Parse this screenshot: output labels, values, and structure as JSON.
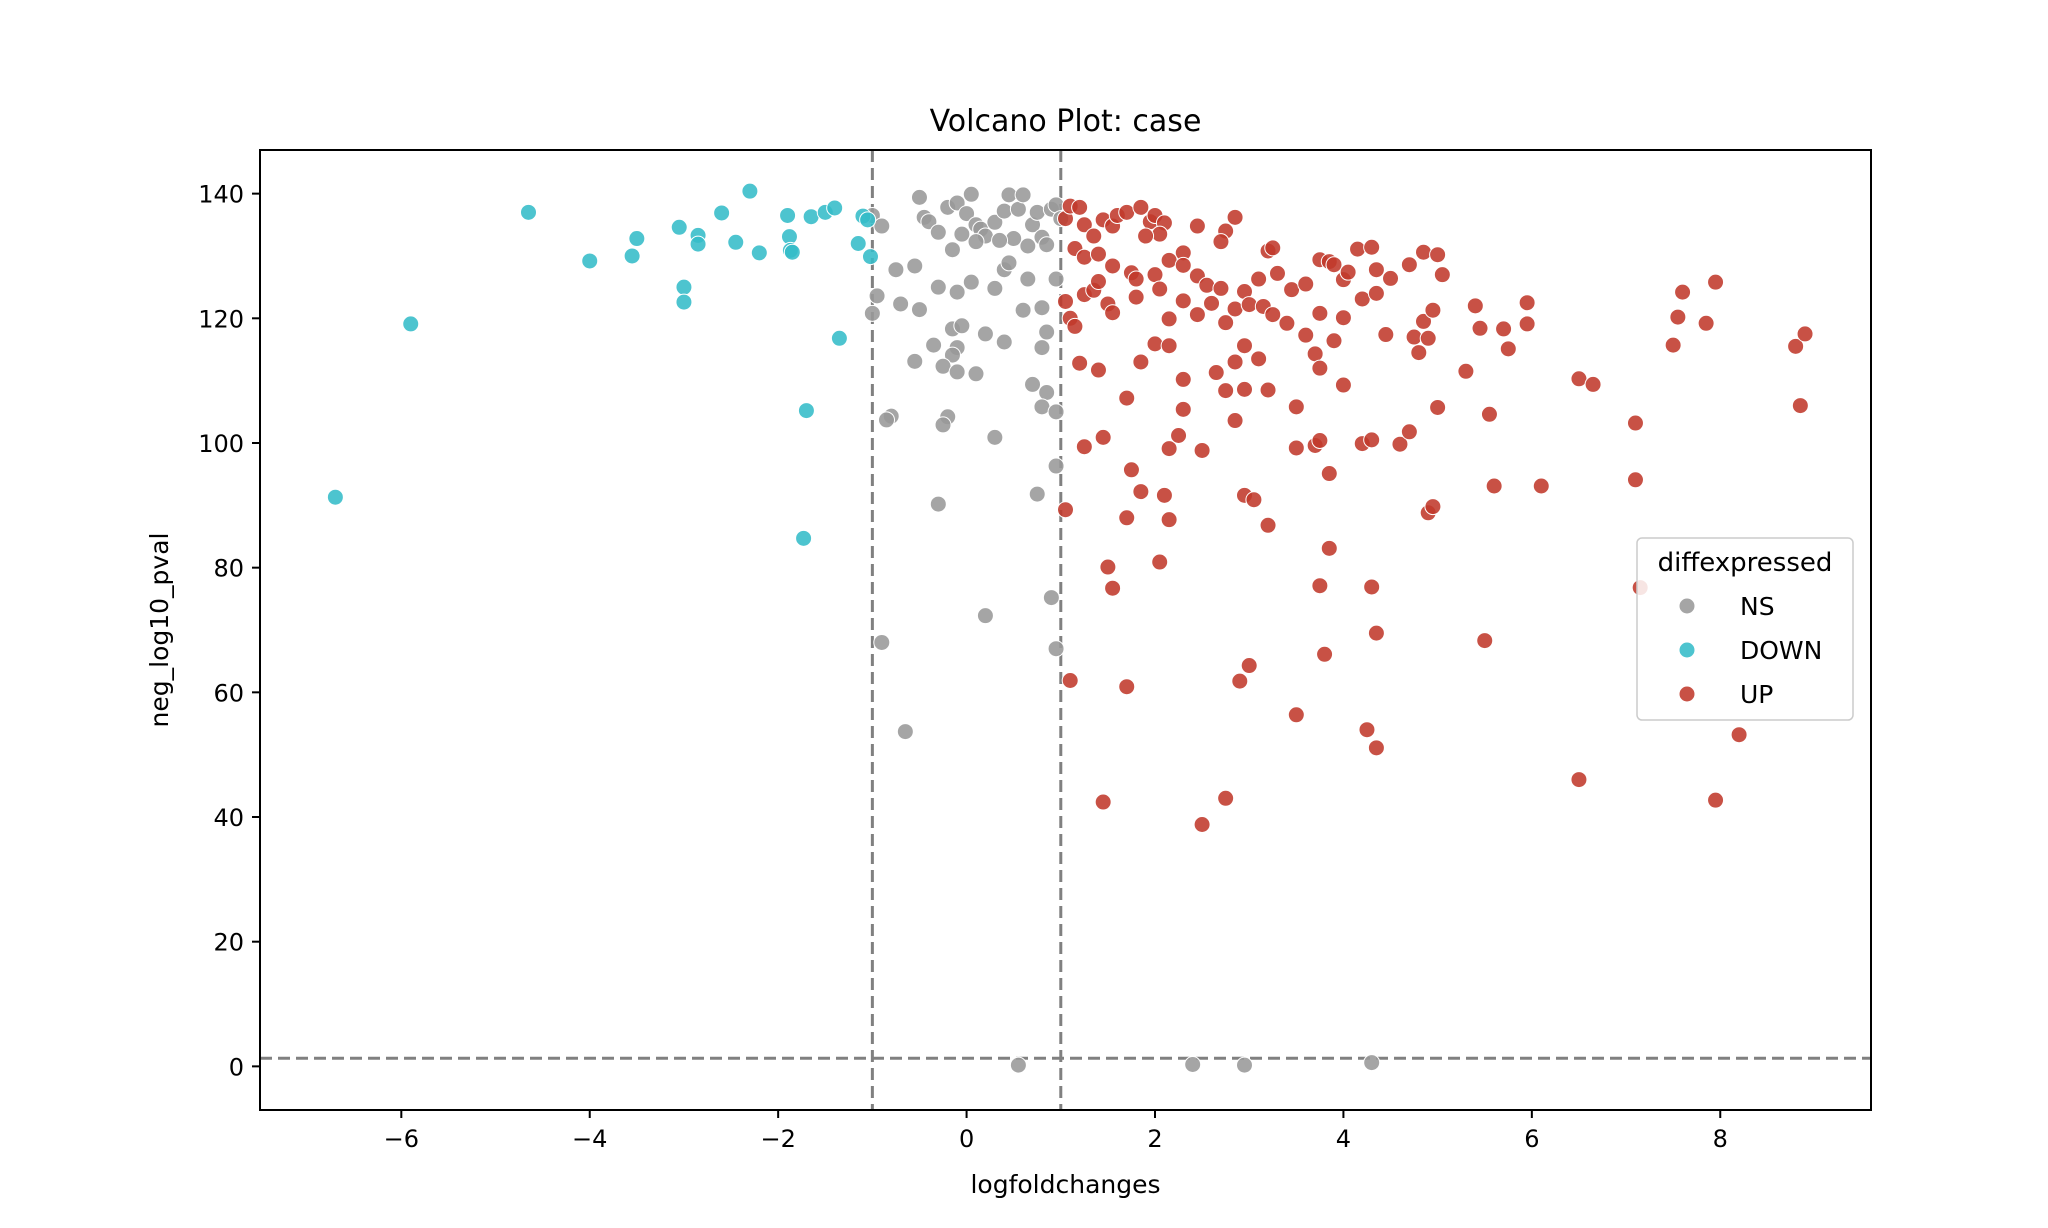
{
  "chart_data": {
    "type": "scatter",
    "title": "Volcano Plot: case",
    "xlabel": "logfoldchanges",
    "ylabel": "neg_log10_pval",
    "xlim": [
      -7.5,
      9.6
    ],
    "ylim": [
      -7,
      147
    ],
    "xticks": [
      -6,
      -4,
      -2,
      0,
      2,
      4,
      6,
      8
    ],
    "yticks": [
      0,
      20,
      40,
      60,
      80,
      100,
      120,
      140
    ],
    "thresholds": {
      "x": [
        -1,
        1
      ],
      "y": 1.3
    },
    "threshold_color": "#808080",
    "grid": false,
    "legend": {
      "title": "diffexpressed",
      "position": "center-right"
    },
    "series": [
      {
        "name": "NS",
        "color": "#999999",
        "points": [
          [
            -1.0,
            136.5
          ],
          [
            -0.9,
            134.8
          ],
          [
            -0.5,
            139.4
          ],
          [
            -0.45,
            136.2
          ],
          [
            -0.4,
            135.5
          ],
          [
            -0.3,
            133.8
          ],
          [
            -0.2,
            137.8
          ],
          [
            -0.1,
            138.5
          ],
          [
            0.05,
            139.9
          ],
          [
            0.0,
            136.8
          ],
          [
            0.1,
            135.0
          ],
          [
            0.15,
            134.3
          ],
          [
            0.2,
            133.2
          ],
          [
            0.3,
            135.4
          ],
          [
            0.4,
            137.2
          ],
          [
            0.45,
            139.8
          ],
          [
            0.55,
            137.5
          ],
          [
            0.6,
            139.8
          ],
          [
            0.7,
            135.0
          ],
          [
            0.75,
            137.0
          ],
          [
            0.8,
            133.0
          ],
          [
            0.9,
            137.5
          ],
          [
            0.95,
            138.2
          ],
          [
            1.0,
            136.0
          ],
          [
            0.85,
            131.8
          ],
          [
            0.65,
            131.6
          ],
          [
            0.5,
            132.8
          ],
          [
            0.35,
            132.5
          ],
          [
            0.1,
            132.3
          ],
          [
            -0.05,
            133.5
          ],
          [
            -0.15,
            131.0
          ],
          [
            0.4,
            127.8
          ],
          [
            0.45,
            128.9
          ],
          [
            0.3,
            124.8
          ],
          [
            0.05,
            125.8
          ],
          [
            -0.1,
            124.2
          ],
          [
            -0.3,
            125.0
          ],
          [
            -0.55,
            128.4
          ],
          [
            -0.75,
            127.8
          ],
          [
            -0.95,
            123.6
          ],
          [
            -0.7,
            122.3
          ],
          [
            -0.5,
            121.4
          ],
          [
            -1.0,
            120.8
          ],
          [
            0.6,
            121.3
          ],
          [
            0.8,
            121.7
          ],
          [
            0.95,
            126.3
          ],
          [
            0.65,
            126.3
          ],
          [
            0.85,
            117.8
          ],
          [
            0.8,
            115.3
          ],
          [
            -0.15,
            118.3
          ],
          [
            -0.05,
            118.8
          ],
          [
            0.2,
            117.5
          ],
          [
            0.4,
            116.2
          ],
          [
            -0.35,
            115.7
          ],
          [
            -0.1,
            115.3
          ],
          [
            -0.15,
            114.1
          ],
          [
            -0.55,
            113.1
          ],
          [
            -0.25,
            112.3
          ],
          [
            -0.1,
            111.4
          ],
          [
            0.1,
            111.1
          ],
          [
            0.7,
            109.4
          ],
          [
            0.85,
            108.1
          ],
          [
            0.8,
            105.8
          ],
          [
            0.95,
            105.0
          ],
          [
            -0.8,
            104.3
          ],
          [
            -0.85,
            103.7
          ],
          [
            -0.2,
            104.2
          ],
          [
            -0.25,
            102.9
          ],
          [
            0.3,
            100.9
          ],
          [
            0.95,
            96.3
          ],
          [
            0.75,
            91.8
          ],
          [
            -0.3,
            90.2
          ],
          [
            0.9,
            75.2
          ],
          [
            0.2,
            72.3
          ],
          [
            0.95,
            67.0
          ],
          [
            -0.9,
            68.0
          ],
          [
            -0.65,
            53.7
          ],
          [
            0.55,
            0.2
          ],
          [
            2.4,
            0.3
          ],
          [
            2.95,
            0.2
          ],
          [
            4.3,
            0.6
          ]
        ]
      },
      {
        "name": "DOWN",
        "color": "#34BCC8",
        "points": [
          [
            -6.7,
            91.3
          ],
          [
            -5.9,
            119.1
          ],
          [
            -4.65,
            137.0
          ],
          [
            -4.0,
            129.2
          ],
          [
            -3.55,
            130.0
          ],
          [
            -3.5,
            132.8
          ],
          [
            -3.05,
            134.6
          ],
          [
            -3.0,
            125.0
          ],
          [
            -3.0,
            122.6
          ],
          [
            -2.85,
            133.3
          ],
          [
            -2.85,
            131.9
          ],
          [
            -2.6,
            136.9
          ],
          [
            -2.45,
            132.2
          ],
          [
            -2.3,
            140.4
          ],
          [
            -2.2,
            130.5
          ],
          [
            -1.9,
            136.5
          ],
          [
            -1.88,
            133.1
          ],
          [
            -1.87,
            130.9
          ],
          [
            -1.85,
            130.6
          ],
          [
            -1.65,
            136.3
          ],
          [
            -1.5,
            137.0
          ],
          [
            -1.4,
            137.7
          ],
          [
            -1.35,
            116.8
          ],
          [
            -1.7,
            105.2
          ],
          [
            -1.73,
            84.7
          ],
          [
            -1.15,
            132.0
          ],
          [
            -1.1,
            136.4
          ],
          [
            -1.05,
            135.8
          ],
          [
            -1.02,
            129.9
          ]
        ]
      },
      {
        "name": "UP",
        "color": "#C0392B",
        "points": [
          [
            1.05,
            136.0
          ],
          [
            1.1,
            138.0
          ],
          [
            1.2,
            137.8
          ],
          [
            1.25,
            135.0
          ],
          [
            1.35,
            133.2
          ],
          [
            1.45,
            135.8
          ],
          [
            1.55,
            134.8
          ],
          [
            1.6,
            136.5
          ],
          [
            1.7,
            137.0
          ],
          [
            1.85,
            137.8
          ],
          [
            1.95,
            135.5
          ],
          [
            2.0,
            136.5
          ],
          [
            2.1,
            135.3
          ],
          [
            2.05,
            133.5
          ],
          [
            1.9,
            133.2
          ],
          [
            2.3,
            130.5
          ],
          [
            2.45,
            134.8
          ],
          [
            2.75,
            134.0
          ],
          [
            2.85,
            136.2
          ],
          [
            2.7,
            132.3
          ],
          [
            3.2,
            130.8
          ],
          [
            3.25,
            131.3
          ],
          [
            1.15,
            131.2
          ],
          [
            1.25,
            129.8
          ],
          [
            1.4,
            130.3
          ],
          [
            1.55,
            128.4
          ],
          [
            1.75,
            127.3
          ],
          [
            1.8,
            126.3
          ],
          [
            2.0,
            127.0
          ],
          [
            2.15,
            129.3
          ],
          [
            2.3,
            128.5
          ],
          [
            2.45,
            126.8
          ],
          [
            2.55,
            125.3
          ],
          [
            2.7,
            124.8
          ],
          [
            2.95,
            124.3
          ],
          [
            3.1,
            126.3
          ],
          [
            3.3,
            127.2
          ],
          [
            3.45,
            124.6
          ],
          [
            3.6,
            125.5
          ],
          [
            3.75,
            129.4
          ],
          [
            3.85,
            129.1
          ],
          [
            3.9,
            128.6
          ],
          [
            4.0,
            126.2
          ],
          [
            4.05,
            127.4
          ],
          [
            4.15,
            131.1
          ],
          [
            4.3,
            131.4
          ],
          [
            4.35,
            127.8
          ],
          [
            4.5,
            126.4
          ],
          [
            4.7,
            128.6
          ],
          [
            4.85,
            130.6
          ],
          [
            5.0,
            130.2
          ],
          [
            5.05,
            127.0
          ],
          [
            1.05,
            122.7
          ],
          [
            1.1,
            120.0
          ],
          [
            1.15,
            118.7
          ],
          [
            1.25,
            123.8
          ],
          [
            1.35,
            124.5
          ],
          [
            1.4,
            125.9
          ],
          [
            1.5,
            122.3
          ],
          [
            1.55,
            120.9
          ],
          [
            1.8,
            123.4
          ],
          [
            2.05,
            124.7
          ],
          [
            2.15,
            119.9
          ],
          [
            2.3,
            122.8
          ],
          [
            2.45,
            120.6
          ],
          [
            2.6,
            122.4
          ],
          [
            2.75,
            119.3
          ],
          [
            2.85,
            121.5
          ],
          [
            3.0,
            122.2
          ],
          [
            3.15,
            121.9
          ],
          [
            3.25,
            120.6
          ],
          [
            3.4,
            119.2
          ],
          [
            3.6,
            117.3
          ],
          [
            3.7,
            114.3
          ],
          [
            3.75,
            120.8
          ],
          [
            3.9,
            116.4
          ],
          [
            4.0,
            120.1
          ],
          [
            4.2,
            123.1
          ],
          [
            4.35,
            124.0
          ],
          [
            4.45,
            117.4
          ],
          [
            4.75,
            117.0
          ],
          [
            4.8,
            114.5
          ],
          [
            4.85,
            119.5
          ],
          [
            4.95,
            121.3
          ],
          [
            4.9,
            116.8
          ],
          [
            5.3,
            111.5
          ],
          [
            5.4,
            122.0
          ],
          [
            5.45,
            118.4
          ],
          [
            5.7,
            118.3
          ],
          [
            5.75,
            115.1
          ],
          [
            5.95,
            122.5
          ],
          [
            5.95,
            119.1
          ],
          [
            1.2,
            112.8
          ],
          [
            1.4,
            111.7
          ],
          [
            1.7,
            107.2
          ],
          [
            1.85,
            113.0
          ],
          [
            2.0,
            115.9
          ],
          [
            2.15,
            115.6
          ],
          [
            2.3,
            110.2
          ],
          [
            2.65,
            111.3
          ],
          [
            2.75,
            108.4
          ],
          [
            2.85,
            113.0
          ],
          [
            2.95,
            115.6
          ],
          [
            3.1,
            113.5
          ],
          [
            3.2,
            108.5
          ],
          [
            3.5,
            105.8
          ],
          [
            3.75,
            112.0
          ],
          [
            4.0,
            109.3
          ],
          [
            1.25,
            99.4
          ],
          [
            1.45,
            100.9
          ],
          [
            1.75,
            95.7
          ],
          [
            1.85,
            92.2
          ],
          [
            2.15,
            99.1
          ],
          [
            2.25,
            101.2
          ],
          [
            2.3,
            105.4
          ],
          [
            2.5,
            98.8
          ],
          [
            2.85,
            103.6
          ],
          [
            2.95,
            108.6
          ],
          [
            3.5,
            99.2
          ],
          [
            3.7,
            99.6
          ],
          [
            3.75,
            100.4
          ],
          [
            3.85,
            95.1
          ],
          [
            4.2,
            99.9
          ],
          [
            4.3,
            100.5
          ],
          [
            4.6,
            99.8
          ],
          [
            4.7,
            101.8
          ],
          [
            5.0,
            105.7
          ],
          [
            5.55,
            104.6
          ],
          [
            5.6,
            93.1
          ],
          [
            6.1,
            93.1
          ],
          [
            6.5,
            110.3
          ],
          [
            6.65,
            109.4
          ],
          [
            7.1,
            103.2
          ],
          [
            7.1,
            94.1
          ],
          [
            7.15,
            76.8
          ],
          [
            7.5,
            115.7
          ],
          [
            7.55,
            120.2
          ],
          [
            7.6,
            124.2
          ],
          [
            7.85,
            119.2
          ],
          [
            7.95,
            125.8
          ],
          [
            8.8,
            115.5
          ],
          [
            8.9,
            117.5
          ],
          [
            8.85,
            106.0
          ],
          [
            1.05,
            89.3
          ],
          [
            1.5,
            80.1
          ],
          [
            1.55,
            76.7
          ],
          [
            1.7,
            88.0
          ],
          [
            2.05,
            80.9
          ],
          [
            2.1,
            91.6
          ],
          [
            2.15,
            87.7
          ],
          [
            2.95,
            91.6
          ],
          [
            3.05,
            90.9
          ],
          [
            3.2,
            86.8
          ],
          [
            3.75,
            77.1
          ],
          [
            3.85,
            83.1
          ],
          [
            4.3,
            76.9
          ],
          [
            4.9,
            88.8
          ],
          [
            4.95,
            89.8
          ],
          [
            1.1,
            61.9
          ],
          [
            1.7,
            60.9
          ],
          [
            2.9,
            61.8
          ],
          [
            3.0,
            64.3
          ],
          [
            3.5,
            56.4
          ],
          [
            3.8,
            66.1
          ],
          [
            4.35,
            69.5
          ],
          [
            5.5,
            68.3
          ],
          [
            4.25,
            54.0
          ],
          [
            4.35,
            51.1
          ],
          [
            1.45,
            42.4
          ],
          [
            2.5,
            38.8
          ],
          [
            2.75,
            43.0
          ],
          [
            6.5,
            46.0
          ],
          [
            7.95,
            42.7
          ],
          [
            8.2,
            53.2
          ]
        ]
      }
    ]
  }
}
